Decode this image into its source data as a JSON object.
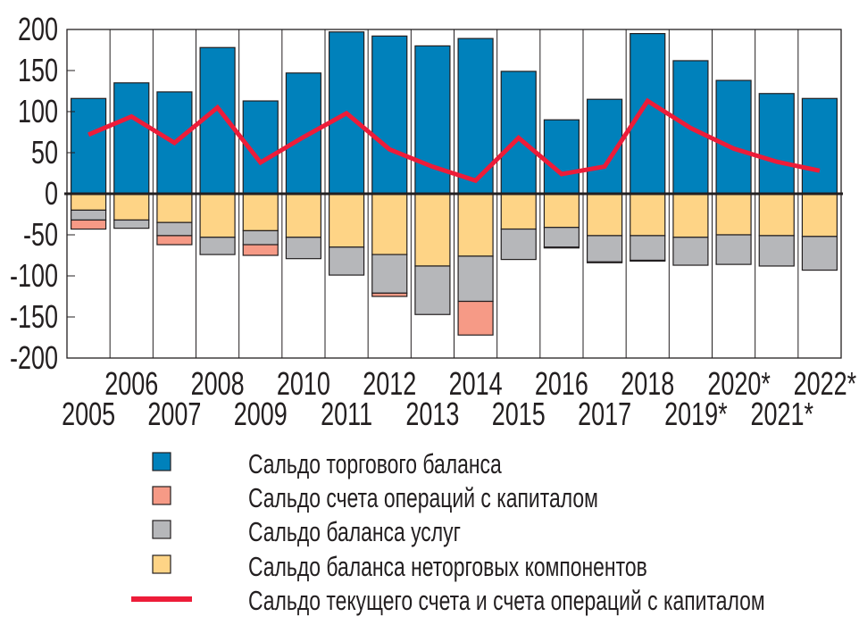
{
  "chart_data": {
    "type": "bar",
    "stacked": true,
    "title": "",
    "xlabel": "",
    "ylabel": "",
    "ylim": [
      -200,
      200
    ],
    "yticks": [
      200,
      150,
      100,
      50,
      0,
      -50,
      -100,
      -150,
      -200
    ],
    "grid": false,
    "legend_position": "bottom",
    "categories": [
      "2005",
      "2006",
      "2007",
      "2008",
      "2009",
      "2010",
      "2011",
      "2012",
      "2013",
      "2014",
      "2015",
      "2016",
      "2017",
      "2018",
      "2019*",
      "2020*",
      "2021*",
      "2022*"
    ],
    "series": [
      {
        "name": "Сальдо торгового баланса",
        "kind": "bar",
        "color": "#0081bb",
        "values": [
          116,
          135,
          124,
          178,
          113,
          147,
          197,
          192,
          180,
          189,
          149,
          90,
          115,
          195,
          162,
          138,
          122,
          116
        ]
      },
      {
        "name": "Сальдо счета операций с капиталом",
        "kind": "bar",
        "color": "#f69a86",
        "values": [
          -11,
          0,
          -11,
          0,
          -13,
          0,
          0,
          -4,
          0,
          -41,
          0,
          -1,
          -1,
          -1,
          0,
          0,
          0,
          0
        ]
      },
      {
        "name": "Сальдо баланса услуг",
        "kind": "bar",
        "color": "#b6b7ba",
        "values": [
          -12,
          -10,
          -16,
          -21,
          -17,
          -26,
          -34,
          -47,
          -59,
          -55,
          -37,
          -24,
          -32,
          -30,
          -34,
          -36,
          -37,
          -41
        ]
      },
      {
        "name": "Сальдо баланса неторговых компонентов",
        "kind": "bar",
        "color": "#fed486",
        "values": [
          -20,
          -32,
          -35,
          -53,
          -45,
          -53,
          -65,
          -74,
          -88,
          -76,
          -43,
          -41,
          -51,
          -51,
          -53,
          -50,
          -51,
          -52
        ]
      },
      {
        "name": "Сальдо текущего счета и счета операций с капиталом",
        "kind": "line",
        "color": "#ed1c39",
        "values": [
          72,
          94,
          62,
          105,
          38,
          69,
          98,
          54,
          33,
          16,
          68,
          24,
          33,
          113,
          80,
          55,
          39,
          28
        ]
      }
    ]
  }
}
